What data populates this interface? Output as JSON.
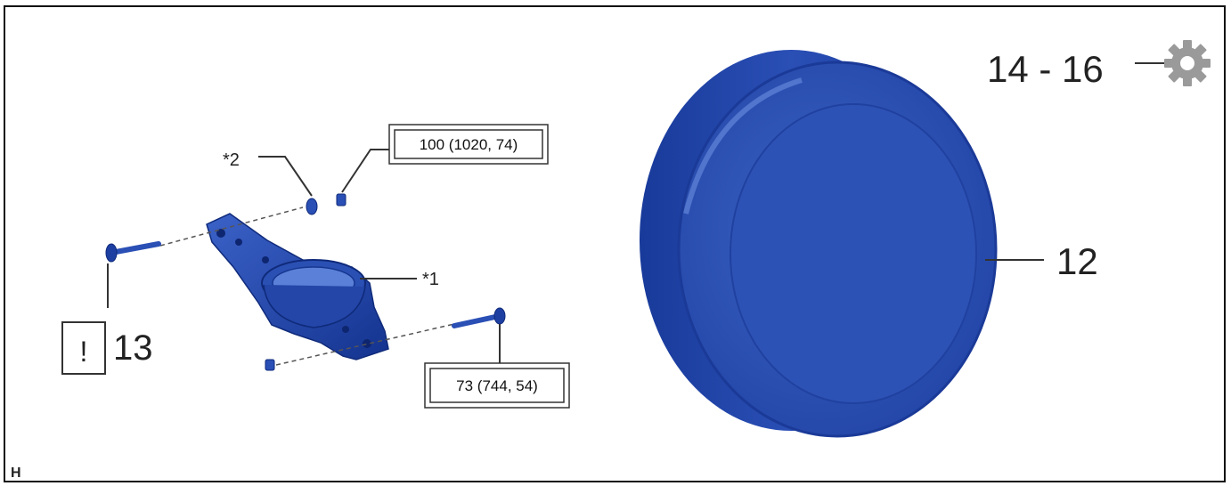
{
  "labels": {
    "part_13": "13",
    "part_12": "12",
    "ref_1": "*1",
    "ref_2": "*2",
    "caution_mark": "!",
    "view_code": "H"
  },
  "torque": {
    "upper_bolt": "100 (1020, 74)",
    "lower_bolt": "73 (744, 54)",
    "tool_range": "14 - 16"
  },
  "icons": {
    "tool": "gear-icon",
    "caution": "caution-icon"
  },
  "colors": {
    "part_blue": "#2f56b8",
    "part_dark": "#12308a",
    "gear_gray": "#9a9a9a"
  }
}
